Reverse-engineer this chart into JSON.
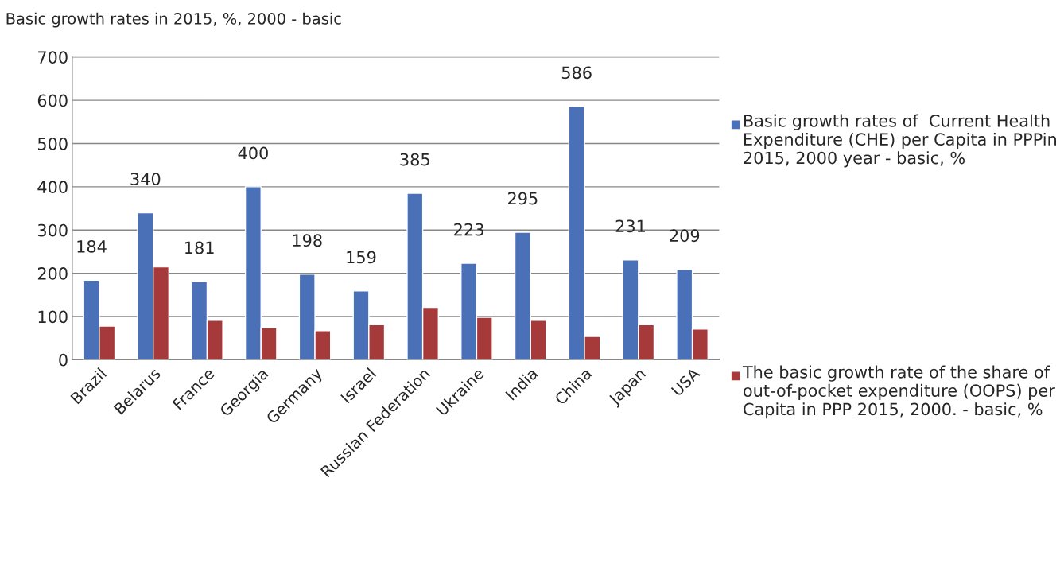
{
  "chart_data": {
    "type": "bar",
    "title": "Basic growth rates in 2015, %, 2000 - basic",
    "categories": [
      "Brazil",
      "Belarus",
      "France",
      "Georgia",
      "Germany",
      "Israel",
      "Russian Federation",
      "Ukraine",
      "India",
      "China",
      "Japan",
      "USA"
    ],
    "series": [
      {
        "name": "Basic growth rates of  Current Health Expenditure (CHE) per Capita in PPPin 2015, 2000 year - basic, %",
        "color": "#4a70b8",
        "values": [
          184,
          340,
          181,
          400,
          198,
          159,
          385,
          223,
          295,
          586,
          231,
          209
        ],
        "value_labels": [
          "184",
          "340",
          "181",
          "400",
          "198",
          "159",
          "385",
          "223",
          "295",
          "586",
          "231",
          "209"
        ]
      },
      {
        "name": "The basic growth rate of the share of out-of-pocket expenditure (OOPS) per Capita in PPP 2015, 2000. - basic, %",
        "color": "#a63a3a",
        "values": [
          78,
          215,
          91,
          74,
          67,
          81,
          121,
          98,
          91,
          54,
          81,
          71
        ]
      }
    ],
    "ylim": [
      0,
      700
    ],
    "yticks": [
      0,
      100,
      200,
      300,
      400,
      500,
      600,
      700
    ],
    "grid": "y",
    "legend": "right"
  }
}
